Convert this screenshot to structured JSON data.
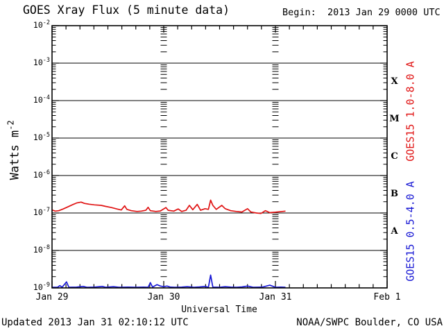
{
  "header": {
    "title": "GOES Xray Flux (5 minute data)",
    "begin": "Begin:  2013 Jan 29 0000 UTC"
  },
  "axes": {
    "ylabel_base": "Watts m",
    "ylabel_exp": "-2",
    "xlabel": "Universal Time"
  },
  "footer": {
    "updated": "Updated 2013 Jan 31 02:10:12 UTC",
    "source": "NOAA/SWPC Boulder, CO USA"
  },
  "chart_data": {
    "type": "line",
    "title": "GOES Xray Flux (5 minute data)",
    "begin_time": "2013 Jan 29 0000 UTC",
    "xlabel": "Universal Time",
    "ylabel": "Watts m-2",
    "x_axis_unit": "days since begin",
    "x_range_days": [
      0,
      3
    ],
    "x_ticks": [
      "Jan 29",
      "Jan 30",
      "Jan 31",
      "Feb 1"
    ],
    "x_minor_tick_hours": 3,
    "y_scale": "log",
    "y_range": [
      1e-09,
      0.01
    ],
    "y_tick_exponents": [
      "-2",
      "-3",
      "-4",
      "-5",
      "-6",
      "-7",
      "-8",
      "-9"
    ],
    "flare_classes": [
      "X",
      "M",
      "C",
      "B",
      "A"
    ],
    "grid": "horizontal-decades",
    "legend_position": "right-rotated",
    "series": [
      {
        "name": "GOES15 1.0-8.0 A",
        "color": "#e01212",
        "points": [
          [
            0.0,
            1.2e-07
          ],
          [
            0.03,
            1.12e-07
          ],
          [
            0.06,
            1.15e-07
          ],
          [
            0.1,
            1.28e-07
          ],
          [
            0.14,
            1.45e-07
          ],
          [
            0.18,
            1.65e-07
          ],
          [
            0.22,
            1.85e-07
          ],
          [
            0.26,
            1.95e-07
          ],
          [
            0.29,
            1.8e-07
          ],
          [
            0.33,
            1.72e-07
          ],
          [
            0.38,
            1.65e-07
          ],
          [
            0.44,
            1.6e-07
          ],
          [
            0.48,
            1.5e-07
          ],
          [
            0.53,
            1.4e-07
          ],
          [
            0.58,
            1.28e-07
          ],
          [
            0.62,
            1.2e-07
          ],
          [
            0.65,
            1.55e-07
          ],
          [
            0.67,
            1.25e-07
          ],
          [
            0.71,
            1.15e-07
          ],
          [
            0.76,
            1.1e-07
          ],
          [
            0.8,
            1.12e-07
          ],
          [
            0.84,
            1.18e-07
          ],
          [
            0.86,
            1.42e-07
          ],
          [
            0.88,
            1.15e-07
          ],
          [
            0.93,
            1.1e-07
          ],
          [
            0.97,
            1.13e-07
          ],
          [
            1.02,
            1.4e-07
          ],
          [
            1.04,
            1.18e-07
          ],
          [
            1.09,
            1.12e-07
          ],
          [
            1.13,
            1.28e-07
          ],
          [
            1.16,
            1.1e-07
          ],
          [
            1.2,
            1.18e-07
          ],
          [
            1.23,
            1.6e-07
          ],
          [
            1.26,
            1.22e-07
          ],
          [
            1.3,
            1.7e-07
          ],
          [
            1.33,
            1.18e-07
          ],
          [
            1.37,
            1.3e-07
          ],
          [
            1.4,
            1.25e-07
          ],
          [
            1.42,
            2.2e-07
          ],
          [
            1.44,
            1.6e-07
          ],
          [
            1.47,
            1.25e-07
          ],
          [
            1.52,
            1.6e-07
          ],
          [
            1.55,
            1.3e-07
          ],
          [
            1.6,
            1.15e-07
          ],
          [
            1.65,
            1.1e-07
          ],
          [
            1.7,
            1.06e-07
          ],
          [
            1.75,
            1.3e-07
          ],
          [
            1.78,
            1.06e-07
          ],
          [
            1.83,
            1e-07
          ],
          [
            1.87,
            9.7e-08
          ],
          [
            1.91,
            1.15e-07
          ],
          [
            1.95,
            1.02e-07
          ],
          [
            2.0,
            1.05e-07
          ],
          [
            2.04,
            1.08e-07
          ],
          [
            2.09,
            1.12e-07
          ]
        ]
      },
      {
        "name": "GOES15 0.5-4.0 A",
        "color": "#1717d4",
        "points": [
          [
            0.0,
            1e-09
          ],
          [
            0.05,
            1e-09
          ],
          [
            0.07,
            1.15e-09
          ],
          [
            0.09,
            1e-09
          ],
          [
            0.13,
            1.45e-09
          ],
          [
            0.15,
            1e-09
          ],
          [
            0.22,
            1.05e-09
          ],
          [
            0.28,
            1.1e-09
          ],
          [
            0.31,
            1e-09
          ],
          [
            0.38,
            1.05e-09
          ],
          [
            0.45,
            1.1e-09
          ],
          [
            0.48,
            1e-09
          ],
          [
            0.55,
            1.08e-09
          ],
          [
            0.6,
            1e-09
          ],
          [
            0.68,
            1.05e-09
          ],
          [
            0.75,
            1e-09
          ],
          [
            0.82,
            1.05e-09
          ],
          [
            0.86,
            1e-09
          ],
          [
            0.88,
            1.38e-09
          ],
          [
            0.9,
            1.05e-09
          ],
          [
            0.94,
            1.22e-09
          ],
          [
            0.97,
            1.12e-09
          ],
          [
            1.0,
            1.08e-09
          ],
          [
            1.03,
            1.12e-09
          ],
          [
            1.06,
            1.05e-09
          ],
          [
            1.1,
            1e-09
          ],
          [
            1.16,
            1.05e-09
          ],
          [
            1.21,
            1.08e-09
          ],
          [
            1.27,
            1e-09
          ],
          [
            1.32,
            1.06e-09
          ],
          [
            1.37,
            1.1e-09
          ],
          [
            1.4,
            1e-09
          ],
          [
            1.42,
            2.2e-09
          ],
          [
            1.44,
            1.05e-09
          ],
          [
            1.5,
            1e-09
          ],
          [
            1.55,
            1.08e-09
          ],
          [
            1.6,
            1.05e-09
          ],
          [
            1.65,
            1e-09
          ],
          [
            1.7,
            1.06e-09
          ],
          [
            1.75,
            1.12e-09
          ],
          [
            1.8,
            1e-09
          ],
          [
            1.88,
            1.05e-09
          ],
          [
            1.95,
            1.18e-09
          ],
          [
            2.0,
            1.02e-09
          ],
          [
            2.05,
            1.05e-09
          ],
          [
            2.09,
            1.04e-09
          ]
        ]
      }
    ]
  }
}
